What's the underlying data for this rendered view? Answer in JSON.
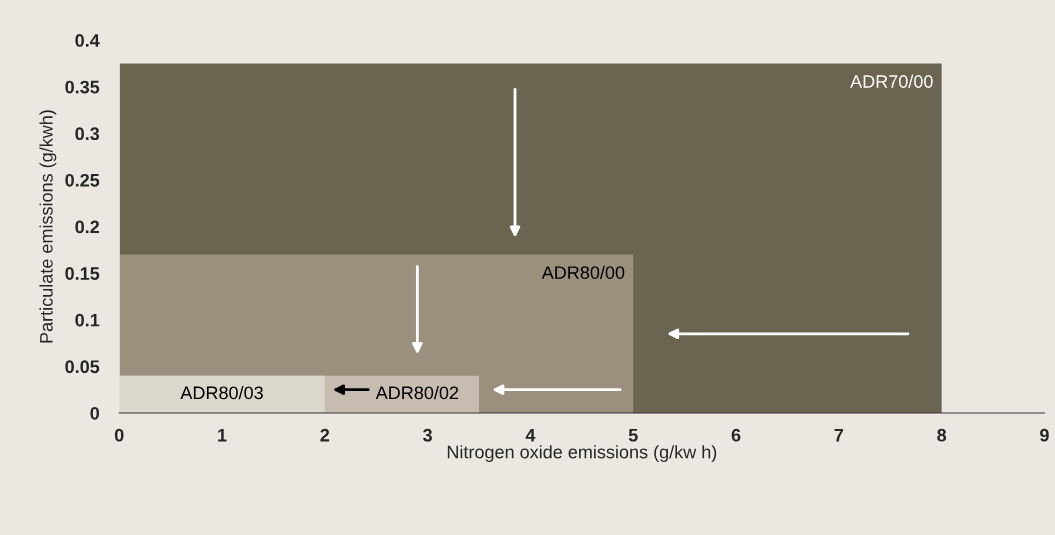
{
  "chart_data": {
    "type": "area",
    "xlabel": "Nitrogen oxide emissions (g/kw h)",
    "ylabel": "Particulate emissions (g/kwh)",
    "series": [
      {
        "name": "ADR70/00",
        "color": "#6b6450",
        "x": [
          0,
          8
        ],
        "values": [
          0.375,
          0.375
        ]
      },
      {
        "name": "ADR80/00",
        "color": "#9b907d",
        "x": [
          0,
          5
        ],
        "values": [
          0.17,
          0.17
        ]
      },
      {
        "name": "ADR80/02",
        "color": "#c6bdb0",
        "x": [
          0,
          3.5
        ],
        "values": [
          0.04,
          0.04
        ]
      },
      {
        "name": "ADR80/03",
        "color": "#dbd7cd",
        "x": [
          0,
          2
        ],
        "values": [
          0.04,
          0.04
        ]
      }
    ],
    "xlim": [
      0,
      9
    ],
    "xticks": [
      0,
      1,
      2,
      3,
      4,
      5,
      6,
      7,
      8,
      9
    ],
    "ylim": [
      0,
      0.4
    ],
    "yticks": [
      0,
      0.05,
      0.1,
      0.15,
      0.2,
      0.25,
      0.3,
      0.35,
      0.4
    ],
    "grid": false,
    "legend": false
  }
}
